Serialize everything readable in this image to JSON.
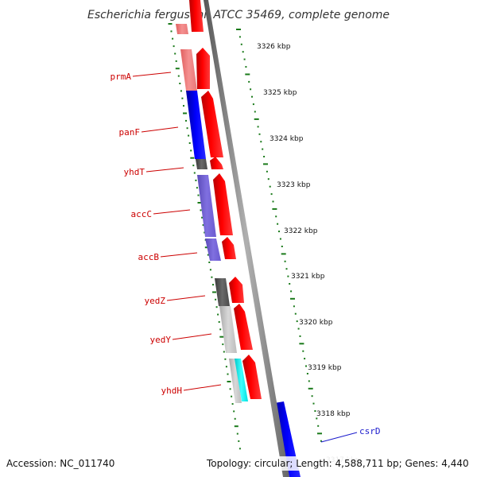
{
  "title": "Escherichia fergusonii ATCC 35469, complete genome",
  "footer": {
    "accession": "Accession: NC_011740",
    "summary": "Topology: circular; Length: 4,588,711 bp; Genes: 4,440"
  },
  "scale": {
    "unit": "kbp",
    "ticks": [
      {
        "value": 3326,
        "label": "3326 kbp"
      },
      {
        "value": 3325,
        "label": "3325 kbp"
      },
      {
        "value": 3324,
        "label": "3324 kbp"
      },
      {
        "value": 3323,
        "label": "3323 kbp"
      },
      {
        "value": 3322,
        "label": "3322 kbp"
      },
      {
        "value": 3321,
        "label": "3321 kbp"
      },
      {
        "value": 3320,
        "label": "3320 kbp"
      },
      {
        "value": 3319,
        "label": "3319 kbp"
      },
      {
        "value": 3318,
        "label": "3318 kbp"
      }
    ]
  },
  "gene_labels": [
    {
      "name": "prmA",
      "strand": "reverse"
    },
    {
      "name": "panF",
      "strand": "reverse"
    },
    {
      "name": "yhdT",
      "strand": "reverse"
    },
    {
      "name": "accC",
      "strand": "reverse"
    },
    {
      "name": "accB",
      "strand": "reverse"
    },
    {
      "name": "yedZ",
      "strand": "reverse"
    },
    {
      "name": "yedY",
      "strand": "reverse"
    },
    {
      "name": "yhdH",
      "strand": "reverse"
    },
    {
      "name": "csrD",
      "strand": "forward"
    }
  ],
  "colors": {
    "forward_gene": "#ff0000",
    "reverse_gene": "#ff0000",
    "label_reverse": "#cc0000",
    "label_forward": "#1a1acc",
    "tick_green": "#1a7a1a",
    "backbone": "#777777",
    "cog_blue": "#0000ee",
    "cog_purple": "#7b68d8",
    "cog_pink": "#f08080",
    "cog_gray_dark": "#5a5a5a",
    "cog_gray_light": "#c8c8c8",
    "cog_cyan": "#00ffff"
  }
}
